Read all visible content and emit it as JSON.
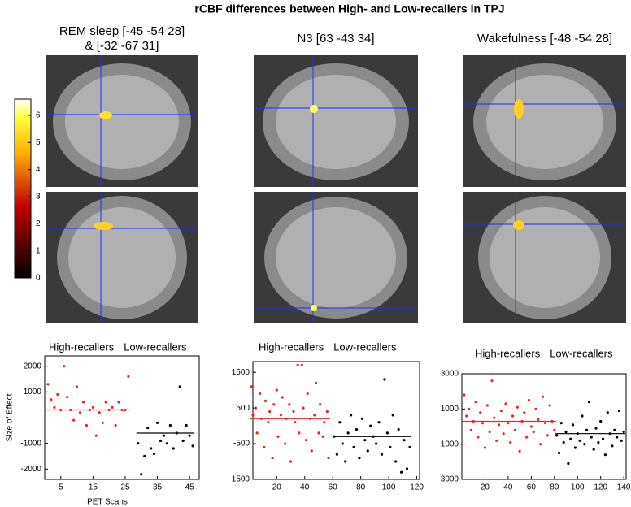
{
  "title": "rCBF differences between High- and Low-recallers in TPJ",
  "columns": [
    [
      "REM sleep [-45 -54 28]",
      "& [-32 -67 31]"
    ],
    [
      "N3 [63 -43 34]"
    ],
    [
      "Wakefulness [-48 -54 28]"
    ]
  ],
  "colorbar": {
    "ticks": [
      0,
      1,
      2,
      3,
      4,
      5,
      6
    ],
    "lim": [
      0,
      6.6
    ]
  },
  "chart_data": [
    {
      "type": "scatter",
      "ylabel": "Size of Effect",
      "xlabel": "PET Scans",
      "xlim": [
        0,
        48
      ],
      "xticks": [
        5,
        15,
        25,
        35,
        45
      ],
      "ylim": [
        -2400,
        2400
      ],
      "yticks": [
        -2000,
        -1000,
        1000,
        2000
      ],
      "series": [
        {
          "name": "High-recallers",
          "color": "#e8282a",
          "mean": 300,
          "x": [
            1,
            2,
            3,
            4,
            5,
            6,
            7,
            8,
            9,
            10,
            11,
            12,
            13,
            14,
            15,
            16,
            17,
            18,
            19,
            20,
            21,
            22,
            23,
            24,
            25,
            26
          ],
          "values": [
            1300,
            700,
            400,
            900,
            300,
            2000,
            800,
            300,
            -100,
            1200,
            200,
            600,
            -300,
            300,
            400,
            -700,
            200,
            -200,
            600,
            300,
            400,
            -300,
            600,
            300,
            300,
            1600
          ]
        },
        {
          "name": "Low-recallers",
          "color": "#000000",
          "mean": -600,
          "x": [
            29,
            30,
            31,
            32,
            33,
            34,
            35,
            36,
            37,
            38,
            39,
            40,
            41,
            42,
            43,
            44,
            45,
            46
          ],
          "values": [
            -1000,
            -2200,
            -1500,
            -400,
            -1200,
            -1400,
            -200,
            -900,
            -700,
            -1000,
            -300,
            -1200,
            -600,
            1200,
            -900,
            -300,
            -700,
            -1100
          ]
        }
      ]
    },
    {
      "type": "scatter",
      "xlim": [
        3,
        122
      ],
      "xticks": [
        20,
        40,
        60,
        80,
        100,
        120
      ],
      "ylim": [
        -1500,
        1800
      ],
      "yticks": [
        -1500,
        -500,
        500,
        1500
      ],
      "series": [
        {
          "name": "High-recallers",
          "color": "#e8282a",
          "mean": 200,
          "x": [
            2,
            3,
            5,
            6,
            8,
            9,
            11,
            12,
            14,
            15,
            17,
            18,
            20,
            21,
            23,
            24,
            26,
            27,
            29,
            30,
            32,
            33,
            35,
            36,
            38,
            39,
            41,
            42,
            44,
            45,
            47,
            48,
            50,
            51,
            53,
            54,
            56,
            57
          ],
          "values": [
            1100,
            300,
            500,
            -200,
            900,
            200,
            -600,
            700,
            100,
            400,
            -900,
            600,
            1000,
            -300,
            300,
            800,
            -500,
            200,
            600,
            -1000,
            400,
            100,
            1700,
            -200,
            1700,
            500,
            -400,
            900,
            200,
            -700,
            300,
            1200,
            -200,
            600,
            -300,
            100,
            400,
            -900
          ]
        },
        {
          "name": "Low-recallers",
          "color": "#000000",
          "mean": -300,
          "x": [
            61,
            63,
            65,
            67,
            69,
            71,
            73,
            75,
            77,
            79,
            81,
            83,
            85,
            87,
            89,
            91,
            93,
            95,
            97,
            99,
            101,
            103,
            105,
            107,
            109,
            111,
            113,
            115
          ],
          "values": [
            -300,
            -800,
            100,
            -500,
            -1000,
            -200,
            300,
            -600,
            -100,
            -900,
            200,
            -400,
            -700,
            0,
            -300,
            -500,
            100,
            -800,
            1300,
            -200,
            -600,
            300,
            -1000,
            -100,
            -1300,
            -400,
            -1200,
            -600
          ]
        }
      ]
    },
    {
      "type": "scatter",
      "xlim": [
        0,
        142
      ],
      "xticks": [
        20,
        40,
        60,
        80,
        100,
        120,
        140
      ],
      "ylim": [
        -3000,
        3000
      ],
      "yticks": [
        -3000,
        -1000,
        1000,
        3000
      ],
      "series": [
        {
          "name": "High-recallers",
          "color": "#e8282a",
          "mean": 300,
          "x": [
            2,
            4,
            6,
            8,
            10,
            12,
            14,
            16,
            18,
            20,
            22,
            24,
            26,
            28,
            30,
            32,
            34,
            36,
            38,
            40,
            42,
            44,
            46,
            48,
            50,
            52,
            54,
            56,
            58,
            60,
            62,
            64,
            66,
            68,
            70,
            72,
            74,
            76,
            78,
            80
          ],
          "values": [
            1800,
            600,
            1000,
            -200,
            300,
            1400,
            -600,
            800,
            200,
            -1200,
            1200,
            -300,
            2600,
            500,
            -800,
            100,
            900,
            -400,
            1300,
            200,
            -900,
            600,
            -200,
            1100,
            -1400,
            300,
            800,
            -600,
            1500,
            0,
            -300,
            1000,
            400,
            -1000,
            1700,
            200,
            -500,
            1200,
            300,
            -200
          ]
        },
        {
          "name": "Low-recallers",
          "color": "#000000",
          "mean": -400,
          "x": [
            82,
            84,
            86,
            88,
            90,
            92,
            94,
            96,
            98,
            100,
            102,
            104,
            106,
            108,
            110,
            112,
            114,
            116,
            118,
            120,
            122,
            124,
            126,
            128,
            130,
            132,
            134,
            136,
            138,
            140
          ],
          "values": [
            -500,
            -1500,
            200,
            -900,
            -300,
            -2100,
            -700,
            100,
            -1200,
            -400,
            -800,
            600,
            -1000,
            -200,
            1400,
            -600,
            -1300,
            -100,
            -900,
            300,
            -700,
            -1600,
            800,
            -400,
            -1100,
            -200,
            -600,
            900,
            -800,
            -300
          ]
        }
      ]
    }
  ]
}
